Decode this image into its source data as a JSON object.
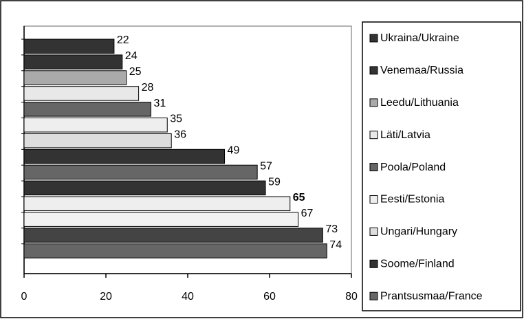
{
  "chart_data": {
    "type": "bar",
    "orientation": "horizontal",
    "categories": [
      null,
      null,
      null,
      null,
      null,
      null,
      null,
      null,
      null,
      null,
      null,
      null,
      null,
      null
    ],
    "values": [
      22,
      24,
      25,
      28,
      31,
      35,
      36,
      49,
      57,
      59,
      65,
      67,
      73,
      74
    ],
    "colors": [
      "#333333",
      "#333333",
      "#aaaaaa",
      "#e8e8e8",
      "#666666",
      "#eeeeee",
      "#dddddd",
      "#333333",
      "#666666",
      "#333333",
      "#eeeeee",
      "#f2f2f2",
      "#444444",
      "#666666"
    ],
    "bold_value_index": 10,
    "xlim": [
      0,
      80
    ],
    "xticks": [
      0,
      20,
      40,
      60,
      80
    ],
    "legend": [
      {
        "name": "Ukraina/Ukraine",
        "color": "#333333"
      },
      {
        "name": "Venemaa/Russia",
        "color": "#333333"
      },
      {
        "name": "Leedu/Lithuania",
        "color": "#aaaaaa"
      },
      {
        "name": "Läti/Latvia",
        "color": "#e8e8e8"
      },
      {
        "name": "Poola/Poland",
        "color": "#666666"
      },
      {
        "name": "Eesti/Estonia",
        "color": "#eeeeee"
      },
      {
        "name": "Ungari/Hungary",
        "color": "#dddddd"
      },
      {
        "name": "Soome/Finland",
        "color": "#333333"
      },
      {
        "name": "Prantsusmaa/France",
        "color": "#666666"
      }
    ]
  }
}
